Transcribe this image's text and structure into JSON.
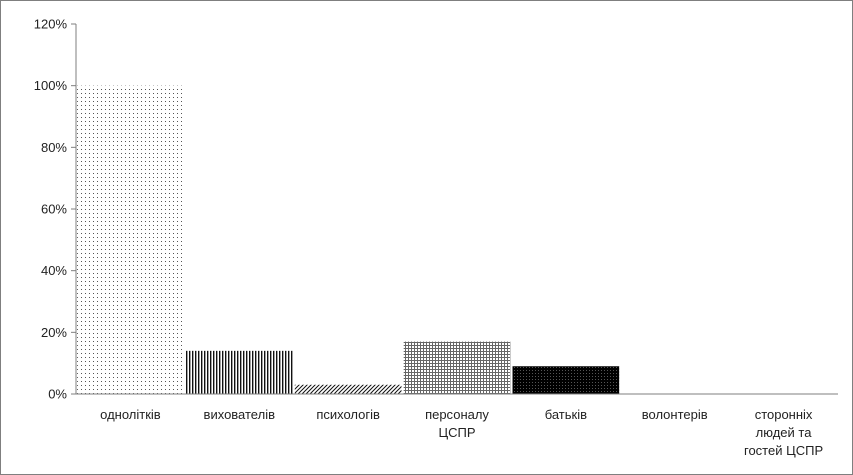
{
  "chart_data": {
    "type": "bar",
    "categories": [
      [
        "однолітків"
      ],
      [
        "вихователів"
      ],
      [
        "психологів"
      ],
      [
        "персоналу",
        "ЦСПР"
      ],
      [
        "батьків"
      ],
      [
        "волонтерів"
      ],
      [
        "сторонніх",
        "людей та",
        "гостей ЦСПР"
      ]
    ],
    "values": [
      100,
      14,
      3,
      17,
      9,
      0,
      0
    ],
    "patterns": [
      "dots-sparse",
      "vertical-lines",
      "diagonal-hatch",
      "grid",
      "dense-black",
      "none",
      "none"
    ],
    "y_ticks": [
      0,
      20,
      40,
      60,
      80,
      100,
      120
    ],
    "y_tick_suffix": "%",
    "ylim": [
      0,
      120
    ],
    "title": "",
    "xlabel": "",
    "ylabel": "",
    "grid": false,
    "legend": "none",
    "colors": {
      "bar_fill": "#000000",
      "axis": "#7f7f7f",
      "frame": "#7f7f7f",
      "text": "#222222"
    }
  }
}
